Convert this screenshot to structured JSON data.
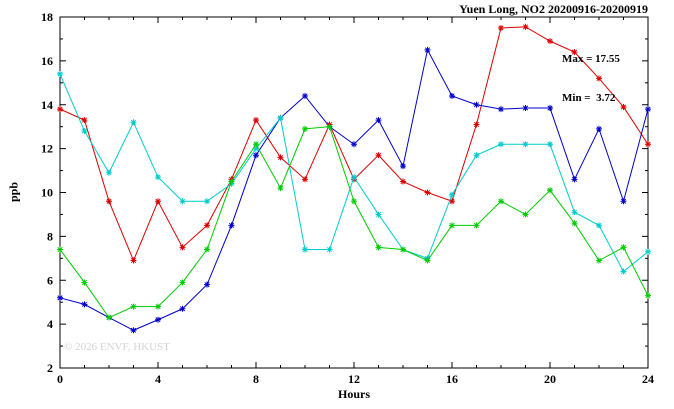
{
  "chart": {
    "title": "Yuen Long, NO2 20200916-20200919",
    "xlabel": "Hours",
    "ylabel": "ppb",
    "watermark": "© 2026 ENVF, HKUST",
    "annotation": {
      "max_label": "Max = 17.55",
      "min_label": "Min =  3.72"
    }
  },
  "chart_data": {
    "type": "line",
    "title": "Yuen Long, NO2 20200916-20200919",
    "xlabel": "Hours",
    "ylabel": "ppb",
    "xlim": [
      0,
      24
    ],
    "ylim": [
      2,
      18
    ],
    "x_major_ticks": [
      0,
      4,
      8,
      12,
      16,
      20,
      24
    ],
    "x_minor_step": 1,
    "y_major_ticks": [
      2,
      4,
      6,
      8,
      10,
      12,
      14,
      16,
      18
    ],
    "y_minor_step": 1,
    "grid": false,
    "legend_position": "none",
    "marker": "star",
    "max_value": 17.55,
    "min_value": 3.72,
    "x": [
      0,
      1,
      2,
      3,
      4,
      5,
      6,
      7,
      8,
      9,
      10,
      11,
      12,
      13,
      14,
      15,
      16,
      17,
      18,
      19,
      20,
      21,
      22,
      23,
      24
    ],
    "series": [
      {
        "name": "series-red",
        "color": "#dd0000",
        "values": [
          13.8,
          13.3,
          9.6,
          6.9,
          9.6,
          7.5,
          8.5,
          10.6,
          13.3,
          11.6,
          10.6,
          13.1,
          10.6,
          11.7,
          10.5,
          10.0,
          9.6,
          13.1,
          17.5,
          17.55,
          16.9,
          16.4,
          15.2,
          13.9,
          12.2
        ]
      },
      {
        "name": "series-blue",
        "color": "#0000cc",
        "values": [
          5.2,
          4.9,
          4.3,
          3.72,
          4.2,
          4.7,
          5.8,
          8.5,
          11.7,
          13.4,
          14.4,
          13.0,
          12.2,
          13.3,
          11.2,
          16.5,
          14.4,
          14.0,
          13.8,
          13.85,
          13.85,
          10.6,
          12.9,
          9.6,
          13.8
        ]
      },
      {
        "name": "series-cyan",
        "color": "#00cccc",
        "values": [
          15.4,
          12.8,
          10.9,
          13.2,
          10.7,
          9.6,
          9.6,
          10.4,
          12.0,
          13.4,
          7.4,
          7.4,
          10.7,
          9.0,
          7.4,
          7.0,
          9.9,
          11.7,
          12.2,
          12.2,
          12.2,
          9.1,
          8.5,
          6.4,
          7.3
        ]
      },
      {
        "name": "series-green",
        "color": "#00cc00",
        "values": [
          7.4,
          5.9,
          4.3,
          4.8,
          4.8,
          5.9,
          7.4,
          10.5,
          12.2,
          10.2,
          12.9,
          13.0,
          9.6,
          7.5,
          7.4,
          6.9,
          8.5,
          8.5,
          9.6,
          9.0,
          10.1,
          8.6,
          6.9,
          7.5,
          5.3
        ]
      }
    ]
  }
}
